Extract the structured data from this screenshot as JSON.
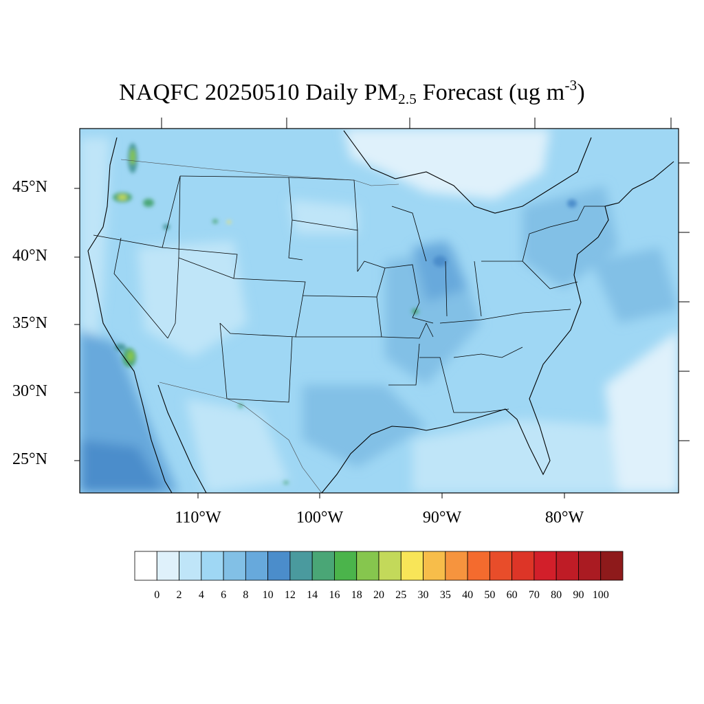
{
  "title": {
    "prefix": "NAQFC 20250510 Daily PM",
    "sub": "2.5",
    "middle": " Forecast (ug m",
    "sup": "-3",
    "suffix": ")"
  },
  "lat_labels": [
    "45°N",
    "40°N",
    "35°N",
    "30°N",
    "25°N"
  ],
  "lon_labels": [
    "110°W",
    "100°W",
    "90°W",
    "80°W"
  ],
  "colorbar": {
    "labels": [
      "0",
      "2",
      "4",
      "6",
      "8",
      "10",
      "12",
      "14",
      "16",
      "18",
      "20",
      "25",
      "30",
      "35",
      "40",
      "50",
      "60",
      "70",
      "80",
      "90",
      "100"
    ],
    "colors": [
      "#ffffff",
      "#dff1fb",
      "#bfe5f8",
      "#9fd7f4",
      "#82c0e6",
      "#67a9dc",
      "#4b8dcb",
      "#4a9a9e",
      "#4aa676",
      "#4bb44b",
      "#86c64e",
      "#c3d95a",
      "#f8e558",
      "#f7bd4a",
      "#f6943e",
      "#f46b2e",
      "#e84d2a",
      "#dd3527",
      "#d21f2a",
      "#bf1c26",
      "#aa1b22",
      "#8e1a1b"
    ]
  }
}
